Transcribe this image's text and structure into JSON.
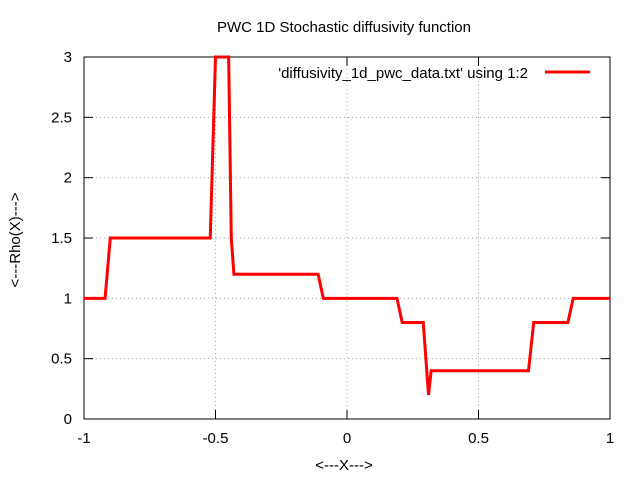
{
  "chart_data": {
    "type": "line",
    "title": "PWC 1D Stochastic diffusivity function",
    "xlabel": "<---X--->",
    "ylabel": "<---Rho(X)--->",
    "xlim": [
      -1,
      1
    ],
    "ylim": [
      0,
      3
    ],
    "xticks": [
      -1,
      -0.5,
      0,
      0.5,
      1
    ],
    "yticks": [
      0,
      0.5,
      1,
      1.5,
      2,
      2.5,
      3
    ],
    "xtick_labels": [
      "-1",
      "-0.5",
      "0",
      "0.5",
      "1"
    ],
    "ytick_labels": [
      "0",
      "0.5",
      "1",
      "1.5",
      "2",
      "2.5",
      "3"
    ],
    "grid": true,
    "legend_position": "top-right",
    "series": [
      {
        "name": "'diffusivity_1d_pwc_data.txt' using 1:2",
        "color": "#ff0000",
        "x": [
          -1,
          -0.92,
          -0.9,
          -0.52,
          -0.5,
          -0.47,
          -0.45,
          -0.44,
          -0.43,
          -0.11,
          -0.09,
          0.19,
          0.21,
          0.29,
          0.31,
          0.32,
          0.335,
          0.69,
          0.71,
          0.84,
          0.86,
          1
        ],
        "y": [
          1,
          1,
          1.5,
          1.5,
          3,
          3,
          3,
          1.5,
          1.2,
          1.2,
          1,
          1,
          0.8,
          0.8,
          0.2,
          0.4,
          0.4,
          0.4,
          0.8,
          0.8,
          1,
          1
        ]
      }
    ]
  }
}
